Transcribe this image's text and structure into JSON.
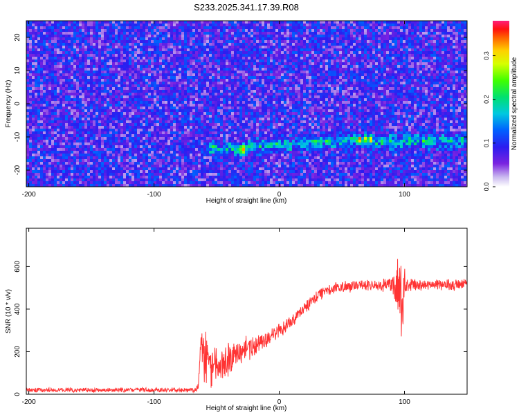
{
  "title": "S233.2025.341.17.39.R08",
  "chart_data": [
    {
      "type": "heatmap",
      "xlabel": "Height of straight line (km)",
      "ylabel": "Frequency (Hz)",
      "xlim": [
        -202,
        150
      ],
      "ylim": [
        -25,
        25
      ],
      "xticks": [
        -200,
        -100,
        0,
        100
      ],
      "yticks": [
        -20,
        -10,
        0,
        10,
        20
      ],
      "ytick_labels": [
        "-20",
        "-10",
        "0",
        "10",
        "20"
      ],
      "xtick_labels": [
        "-200",
        "-100",
        "0",
        "100"
      ],
      "colorbar": {
        "label": "Normalized spectral amplitude",
        "range": [
          0.0,
          0.38
        ],
        "ticks": [
          0.0,
          0.1,
          0.2,
          0.3
        ],
        "tick_labels": [
          "0.0",
          "0.1",
          "0.2",
          "0.3"
        ]
      },
      "features": {
        "signal_track": {
          "description_free": true,
          "x": [
            -55,
            -45,
            -35,
            -25,
            -15,
            0,
            20,
            40,
            60,
            65,
            70,
            80,
            100,
            120,
            140,
            148
          ],
          "y": [
            -13,
            -13.5,
            -13.5,
            -12.5,
            -12.5,
            -12,
            -11.5,
            -11,
            -10.5,
            -10.5,
            -10.5,
            -11,
            -11,
            -11,
            -10.5,
            -10.5
          ]
        },
        "peaks": [
          {
            "x": -30,
            "y": -13.5,
            "value": 0.36
          },
          {
            "x": -24,
            "y": -12.5,
            "value": 0.22
          },
          {
            "x": 63,
            "y": -10.5,
            "value": 0.35
          },
          {
            "x": 68,
            "y": -10.5,
            "value": 0.3
          },
          {
            "x": 72,
            "y": -10.5,
            "value": 0.28
          },
          {
            "x": 145,
            "y": -10.5,
            "value": 0.22
          }
        ],
        "background_level": 0.08
      }
    },
    {
      "type": "line",
      "xlabel": "Height of straight line (km)",
      "ylabel": "SNR (10 * v/v)",
      "xlim": [
        -202,
        150
      ],
      "ylim": [
        0,
        780
      ],
      "xticks": [
        -200,
        -100,
        0,
        100
      ],
      "xtick_labels": [
        "-200",
        "-100",
        "0",
        "100"
      ],
      "yticks": [
        0,
        200,
        400,
        600
      ],
      "ytick_labels": [
        "0",
        "200",
        "400",
        "600"
      ],
      "color": "#ff3333",
      "series": [
        {
          "x": [
            -202,
            -70,
            -65,
            -62,
            -60,
            -55,
            -50,
            -45,
            -40,
            -35,
            -30,
            -25,
            -20,
            -15,
            -10,
            -5,
            0,
            5,
            10,
            15,
            20,
            25,
            30,
            35,
            40,
            50,
            60,
            70,
            80,
            90,
            95,
            98,
            100,
            102,
            105,
            110,
            120,
            130,
            140,
            150
          ],
          "y": [
            20,
            20,
            25,
            250,
            200,
            150,
            120,
            140,
            160,
            180,
            200,
            220,
            230,
            240,
            260,
            280,
            300,
            320,
            340,
            370,
            400,
            430,
            460,
            480,
            490,
            505,
            510,
            512,
            512,
            510,
            480,
            440,
            520,
            520,
            515,
            515,
            515,
            515,
            515,
            515
          ],
          "noise": [
            10,
            10,
            20,
            80,
            120,
            110,
            100,
            80,
            70,
            60,
            55,
            50,
            45,
            40,
            40,
            35,
            35,
            35,
            30,
            30,
            30,
            30,
            30,
            30,
            25,
            25,
            25,
            25,
            25,
            35,
            120,
            250,
            90,
            40,
            30,
            25,
            25,
            25,
            25,
            25
          ]
        }
      ]
    }
  ]
}
